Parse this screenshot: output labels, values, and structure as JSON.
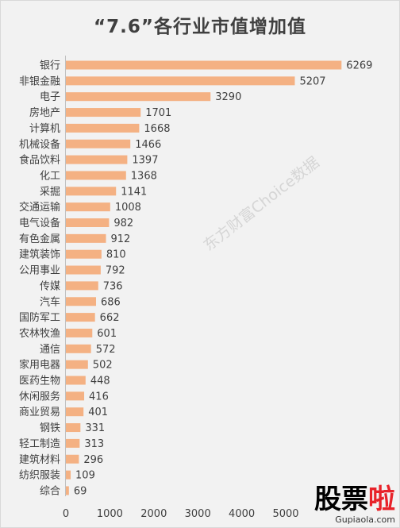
{
  "chart_data": {
    "type": "bar",
    "orientation": "horizontal",
    "title": "“7.6”各行业市值增加值",
    "categories": [
      "银行",
      "非银金融",
      "电子",
      "房地产",
      "计算机",
      "机械设备",
      "食品饮料",
      "化工",
      "采掘",
      "交通运输",
      "电气设备",
      "有色金属",
      "建筑装饰",
      "公用事业",
      "传媒",
      "汽车",
      "国防军工",
      "农林牧渔",
      "通信",
      "家用电器",
      "医药生物",
      "休闲服务",
      "商业贸易",
      "钢铁",
      "轻工制造",
      "建筑材料",
      "纺织服装",
      "综合"
    ],
    "values": [
      6269,
      5207,
      3290,
      1701,
      1668,
      1466,
      1397,
      1368,
      1141,
      1008,
      982,
      912,
      810,
      792,
      736,
      686,
      662,
      601,
      572,
      502,
      448,
      416,
      401,
      331,
      313,
      296,
      109,
      69
    ],
    "value_labels": [
      "6269",
      "5207",
      "3290",
      "1701",
      "1668",
      "1466",
      "1397",
      "1368",
      "1141",
      "1008",
      "982",
      "912",
      "810",
      "792",
      "736",
      "686",
      "662",
      "601",
      "572",
      "502",
      "448",
      "416",
      "401",
      "331",
      "313",
      "296",
      "109",
      "69"
    ],
    "xlim": [
      0,
      6000
    ],
    "xticks": [
      "0",
      "1000",
      "2000",
      "3000",
      "4000",
      "5000"
    ],
    "bar_color": "#f4b183",
    "grid": false,
    "legend": "none"
  },
  "watermark": "东方财富Choice数据",
  "logo": {
    "text_main": "股票",
    "text_accent": "啦",
    "url": "Gupiaola.com"
  }
}
